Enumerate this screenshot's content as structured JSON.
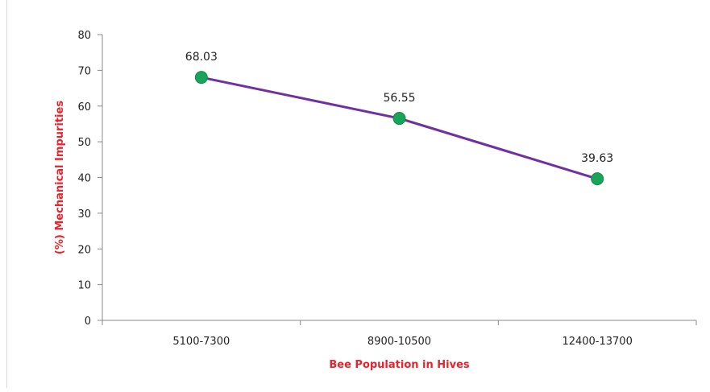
{
  "chart_data": {
    "type": "line",
    "title": "",
    "xlabel": "Bee Population in Hives",
    "ylabel": "(%) Mechanical Impurities",
    "categories": [
      "5100-7300",
      "8900-10500",
      "12400-13700"
    ],
    "series": [
      {
        "values": [
          68.03,
          56.55,
          39.63
        ]
      }
    ],
    "data_labels": [
      "68.03",
      "56.55",
      "39.63"
    ],
    "yticks": [
      0,
      10,
      20,
      30,
      40,
      50,
      60,
      70,
      80
    ],
    "ylim": [
      0,
      80
    ],
    "grid": false,
    "legend": "none",
    "colors": {
      "line": "#7030a0",
      "marker": "#18a55a",
      "axis_title": "#e8232b",
      "axis": "#888888",
      "text": "#222222"
    }
  }
}
